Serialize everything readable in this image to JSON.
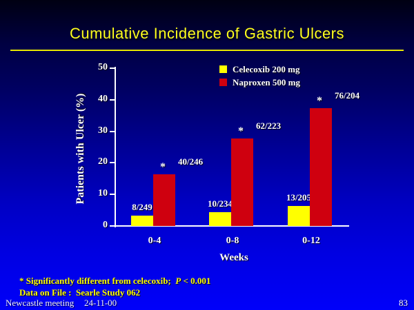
{
  "title": "Cumulative Incidence of Gastric Ulcers",
  "chart_data": {
    "type": "bar",
    "title": "Cumulative Incidence of Gastric Ulcers",
    "categories": [
      "0-4",
      "0-8",
      "0-12"
    ],
    "series": [
      {
        "name": "Celecoxib 200 mg",
        "color": "#ffff00",
        "values": [
          3.2,
          4.3,
          6.3
        ],
        "labels": [
          "8/249",
          "10/234",
          "13/205"
        ],
        "annotations": [
          "",
          "",
          ""
        ]
      },
      {
        "name": "Naproxen 500 mg",
        "color": "#cf000f",
        "values": [
          16.3,
          27.8,
          37.3
        ],
        "labels": [
          "40/246",
          "62/223",
          "76/204"
        ],
        "annotations": [
          "*",
          "*",
          "*"
        ]
      }
    ],
    "xlabel": "Weeks",
    "ylabel": "Patients with Ulcer (%)",
    "ylim": [
      0,
      50
    ],
    "yticks": [
      "0",
      "10",
      "20",
      "30",
      "40",
      "50"
    ],
    "grid": false,
    "legend_position": "top-right"
  },
  "footnotes": {
    "line1_prefix": "* Significantly different from celecoxib;  ",
    "line1_p": "P",
    "line1_suffix": " < 0.001",
    "line2": "Data on File :  Searle Study 062"
  },
  "footer": {
    "meeting": "Newcastle meeting",
    "date": "24-11-00",
    "page": "83"
  },
  "colors": {
    "background_top": "#000012",
    "background_bottom": "#0000fa",
    "title_text": "#ffff1e",
    "divider": "#e8e800",
    "celecoxib_bar": "#ffff00",
    "naproxen_bar": "#cf000f",
    "axis_and_labels": "#ffffff",
    "footnote_text": "#ffff00"
  }
}
